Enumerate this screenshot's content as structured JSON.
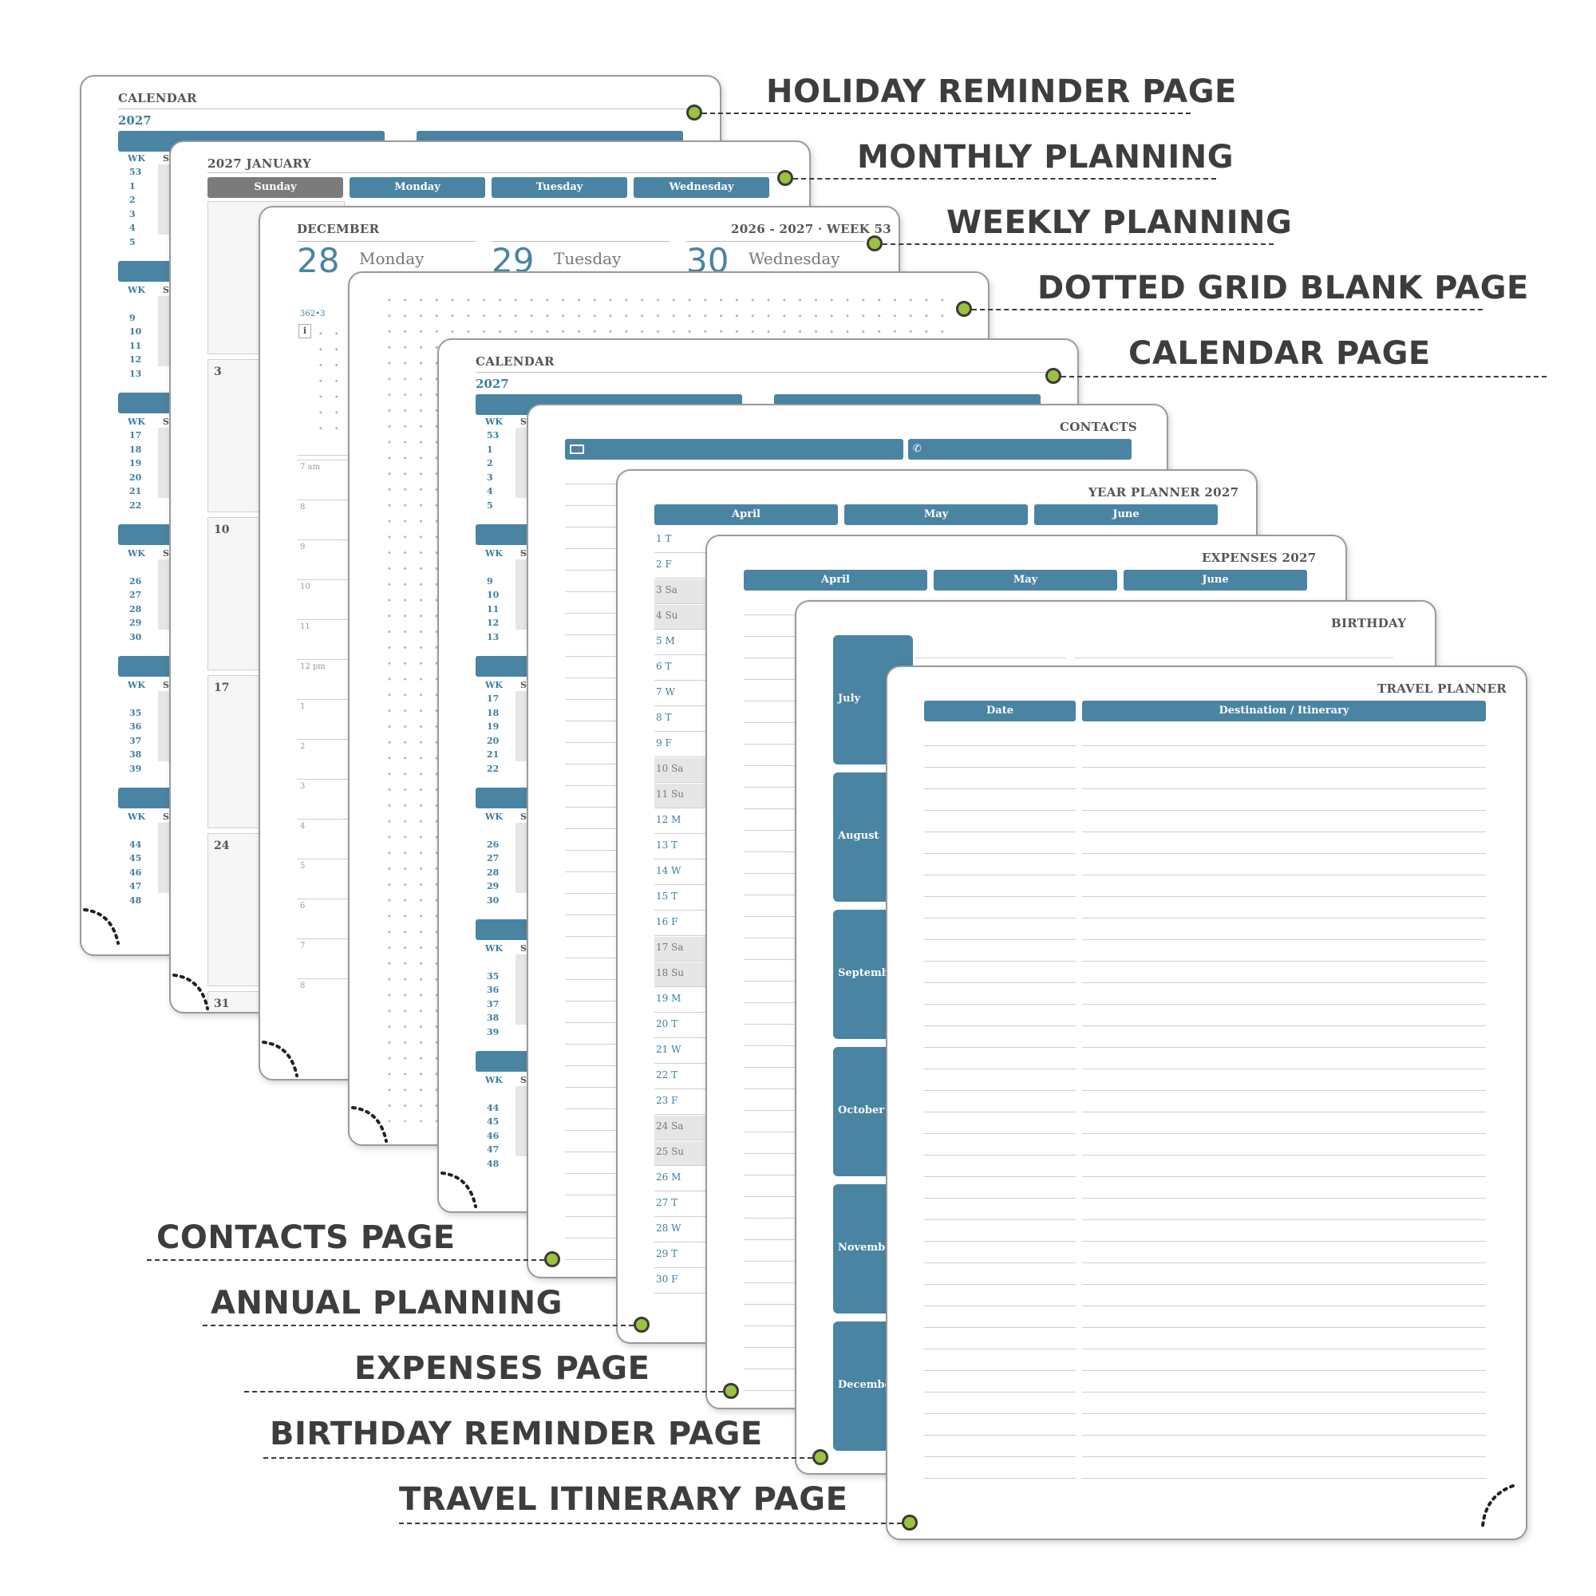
{
  "labels": {
    "holiday": "HOLIDAY REMINDER PAGE",
    "monthly": "MONTHLY PLANNING",
    "weekly": "WEEKLY PLANNING",
    "dotted": "DOTTED GRID BLANK PAGE",
    "calendar": "CALENDAR PAGE",
    "contacts": "CONTACTS PAGE",
    "annual": "ANNUAL PLANNING",
    "expenses": "EXPENSES PAGE",
    "birthday": "BIRTHDAY REMINDER PAGE",
    "travel": "TRAVEL ITINERARY PAGE"
  },
  "holiday_page": {
    "title": "CALENDAR",
    "year": "2027",
    "wk_label": "WK",
    "day_label": "S",
    "week_groups": [
      [
        "53",
        "1",
        "2",
        "3",
        "4",
        "5"
      ],
      [
        "",
        "9",
        "10",
        "11",
        "12",
        "13"
      ],
      [
        "17",
        "18",
        "19",
        "20",
        "21",
        "22"
      ],
      [
        "",
        "26",
        "27",
        "28",
        "29",
        "30"
      ],
      [
        "",
        "35",
        "36",
        "37",
        "38",
        "39"
      ],
      [
        "",
        "44",
        "45",
        "46",
        "47",
        "48"
      ]
    ]
  },
  "monthly_page": {
    "title": "2027 JANUARY",
    "days": [
      "Sunday",
      "Monday",
      "Tuesday",
      "Wednesday"
    ],
    "dates": [
      "",
      "3",
      "10",
      "17",
      "24",
      "31"
    ]
  },
  "weekly_page": {
    "month": "DECEMBER",
    "week": "2026 - 2027 · WEEK 53",
    "days": [
      {
        "num": "28",
        "name": "Monday"
      },
      {
        "num": "29",
        "name": "Tuesday"
      },
      {
        "num": "30",
        "name": "Wednesday"
      }
    ],
    "day_of_year": "362•3",
    "info": "i",
    "times": [
      "7 am",
      "8",
      "9",
      "10",
      "11",
      "12 pm",
      "1",
      "2",
      "3",
      "4",
      "5",
      "6",
      "7",
      "8"
    ]
  },
  "calendar_page": {
    "title": "CALENDAR",
    "year": "2027",
    "wk_label": "WK",
    "day_label": "S",
    "week_groups": [
      [
        "53",
        "1",
        "2",
        "3",
        "4",
        "5"
      ],
      [
        "",
        "9",
        "10",
        "11",
        "12",
        "13"
      ],
      [
        "17",
        "18",
        "19",
        "20",
        "21",
        "22"
      ],
      [
        "",
        "26",
        "27",
        "28",
        "29",
        "30"
      ],
      [
        "",
        "35",
        "36",
        "37",
        "38",
        "39"
      ],
      [
        "",
        "44",
        "45",
        "46",
        "47",
        "48"
      ]
    ]
  },
  "contacts_page": {
    "title": "CONTACTS"
  },
  "year_planner_page": {
    "title": "YEAR PLANNER 2027",
    "months": [
      "April",
      "May",
      "June"
    ],
    "days": [
      "1 T",
      "2 F",
      "3 Sa",
      "4 Su",
      "5 M",
      "6 T",
      "7 W",
      "8 T",
      "9 F",
      "10 Sa",
      "11 Su",
      "12 M",
      "13 T",
      "14 W",
      "15 T",
      "16 F",
      "17 Sa",
      "18 Su",
      "19 M",
      "20 T",
      "21 W",
      "22 T",
      "23 F",
      "24 Sa",
      "25 Su",
      "26 M",
      "27 T",
      "28 W",
      "29 T",
      "30 F"
    ]
  },
  "expenses_page": {
    "title": "EXPENSES 2027",
    "months": [
      "April",
      "May",
      "June"
    ]
  },
  "birthday_page": {
    "title": "BIRTHDAY",
    "months": [
      "July",
      "August",
      "September",
      "October",
      "November",
      "December"
    ]
  },
  "travel_page": {
    "title": "TRAVEL PLANNER",
    "columns": [
      "Date",
      "Destination / Itinerary"
    ]
  },
  "colors": {
    "accent": "#4a84a3",
    "marker": "#9dc23b",
    "label_text": "#3d3d3d"
  }
}
